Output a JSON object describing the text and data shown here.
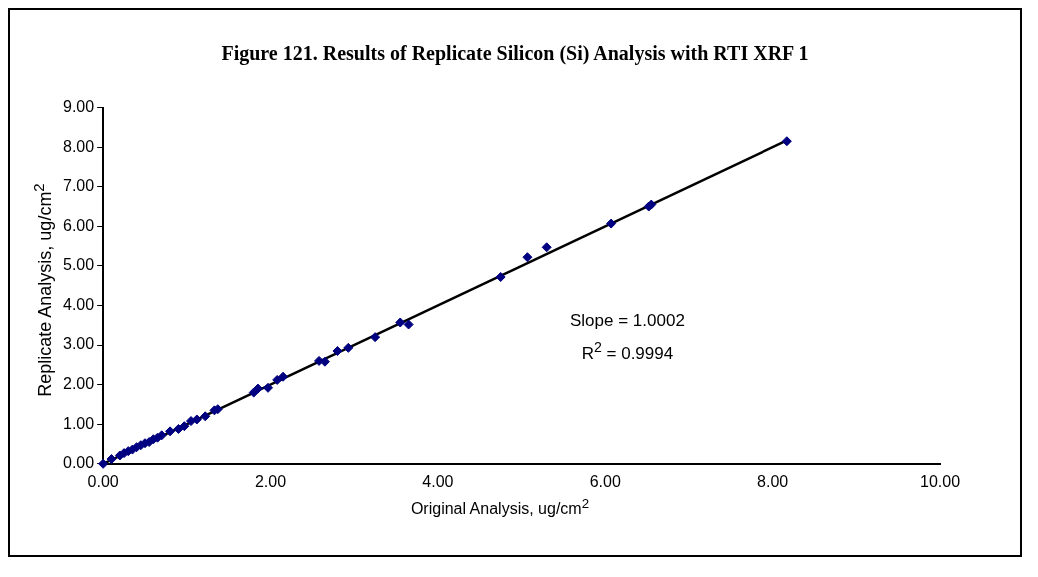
{
  "chart_data": {
    "type": "scatter",
    "title": "Figure 121.  Results of Replicate Silicon (Si) Analysis with RTI XRF 1",
    "xlabel": "Original Analysis, ug/cm$^{2}$",
    "ylabel": "Replicate Analysis, ug/cm$^{2}$",
    "annotations": [
      "Slope = 1.0002",
      "R$^{2}$ = 0.9994"
    ],
    "grid": false,
    "legend": false,
    "xlim": [
      0,
      10
    ],
    "xticks": [
      {
        "value": 0,
        "label": "0.00"
      },
      {
        "value": 2,
        "label": "2.00"
      },
      {
        "value": 4,
        "label": "4.00"
      },
      {
        "value": 6,
        "label": "6.00"
      },
      {
        "value": 8,
        "label": "8.00"
      },
      {
        "value": 10,
        "label": "10.00"
      }
    ],
    "ylim": [
      0,
      9
    ],
    "yticks": [
      {
        "value": 0,
        "label": "0.00"
      },
      {
        "value": 1,
        "label": "1.00"
      },
      {
        "value": 2,
        "label": "2.00"
      },
      {
        "value": 3,
        "label": "3.00"
      },
      {
        "value": 4,
        "label": "4.00"
      },
      {
        "value": 5,
        "label": "5.00"
      },
      {
        "value": 6,
        "label": "6.00"
      },
      {
        "value": 7,
        "label": "7.00"
      },
      {
        "value": 8,
        "label": "8.00"
      },
      {
        "value": 9,
        "label": "9.00"
      }
    ],
    "series": [
      {
        "marker": "diamond",
        "color": "#000080",
        "x": [
          8.17,
          6.55,
          6.52,
          6.07,
          5.3,
          5.07,
          4.75,
          3.65,
          3.55,
          3.25,
          2.93,
          2.8,
          2.65,
          2.58,
          2.15,
          2.08,
          1.97,
          1.85,
          1.8,
          1.37,
          1.33,
          1.22,
          1.12,
          1.05,
          0.97,
          0.9,
          0.8,
          0.7,
          0.65,
          0.6,
          0.55,
          0.5,
          0.45,
          0.4,
          0.35,
          0.3,
          0.25,
          0.2,
          0.1,
          0
        ],
        "values": [
          8.15,
          6.55,
          6.5,
          6.07,
          5.47,
          5.22,
          4.72,
          3.52,
          3.57,
          3.2,
          2.93,
          2.85,
          2.58,
          2.6,
          2.2,
          2.12,
          1.92,
          1.9,
          1.8,
          1.38,
          1.35,
          1.2,
          1.12,
          1.08,
          0.95,
          0.88,
          0.82,
          0.72,
          0.66,
          0.62,
          0.55,
          0.52,
          0.47,
          0.42,
          0.36,
          0.32,
          0.27,
          0.21,
          0.12,
          0
        ]
      },
      {
        "type": "line",
        "color": "#000000",
        "x": [
          0,
          8.17
        ],
        "values": [
          0,
          8.17
        ]
      }
    ]
  }
}
